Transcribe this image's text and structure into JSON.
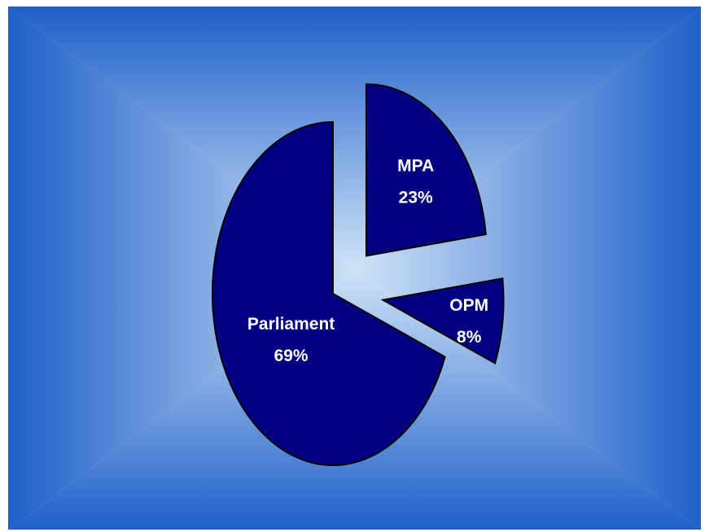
{
  "chart_data": {
    "type": "pie",
    "title": "",
    "labels": [
      "MPA",
      "OPM",
      "Parliament"
    ],
    "values": [
      23,
      8,
      69
    ],
    "value_labels": [
      "23%",
      "8%",
      "69%"
    ],
    "exploded": [
      true,
      true,
      false
    ],
    "legend": "none",
    "colors": {
      "slice_fill": "#000080",
      "slice_stroke": "#000000",
      "label_text": "#ffffff",
      "background_center": "#cfe3f7",
      "background_edge": "#1f5fc8"
    }
  }
}
